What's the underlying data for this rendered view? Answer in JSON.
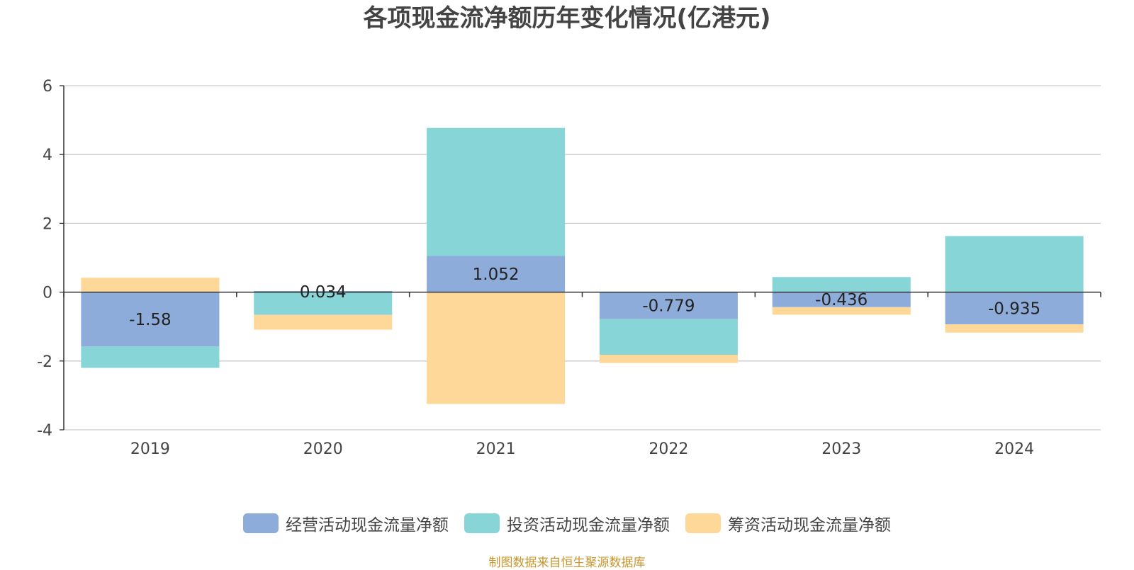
{
  "chart_data": {
    "type": "bar",
    "stacked": true,
    "title": "各项现金流净额历年变化情况(亿港元)",
    "categories": [
      "2019",
      "2020",
      "2021",
      "2022",
      "2023",
      "2024"
    ],
    "series": [
      {
        "name": "经营活动现金流量净额",
        "color": "#8EACD9",
        "values": [
          -1.58,
          0.034,
          1.052,
          -0.779,
          -0.436,
          -0.935
        ],
        "labels": [
          "-1.58",
          "0.034",
          "1.052",
          "-0.779",
          "-0.436",
          "-0.935"
        ]
      },
      {
        "name": "投资活动现金流量净额",
        "color": "#88D5D8",
        "values": [
          -0.62,
          -0.66,
          3.72,
          -1.04,
          0.44,
          1.63
        ]
      },
      {
        "name": "筹资活动现金流量净额",
        "color": "#FED898",
        "values": [
          0.42,
          -0.43,
          -3.25,
          -0.24,
          -0.22,
          -0.24
        ]
      }
    ],
    "ylim": [
      -4,
      6
    ],
    "yticks": [
      -4,
      -2,
      0,
      2,
      4,
      6
    ],
    "grid": true,
    "legend_position": "bottom"
  },
  "source_note": "制图数据来自恒生聚源数据库"
}
